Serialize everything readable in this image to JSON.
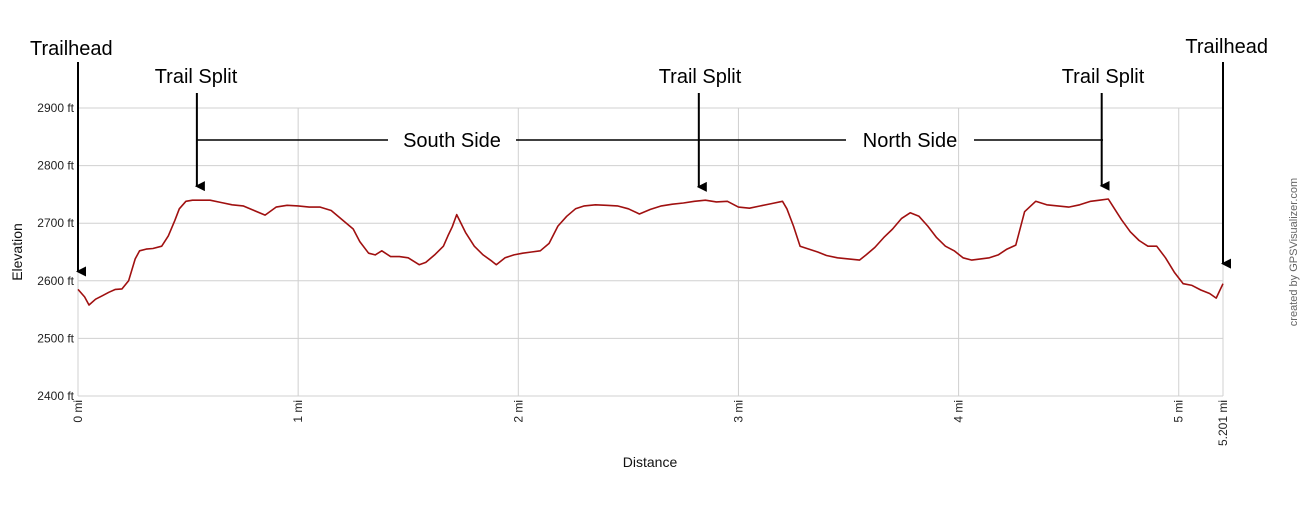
{
  "chart_data": {
    "type": "line",
    "xlabel": "Distance",
    "ylabel": "Elevation",
    "xlim": [
      0,
      5.201
    ],
    "ylim": [
      2400,
      2900
    ],
    "y_ticks": [
      {
        "value": 2400,
        "label": "2400 ft"
      },
      {
        "value": 2500,
        "label": "2500 ft"
      },
      {
        "value": 2600,
        "label": "2600 ft"
      },
      {
        "value": 2700,
        "label": "2700 ft"
      },
      {
        "value": 2800,
        "label": "2800 ft"
      },
      {
        "value": 2900,
        "label": "2900 ft"
      }
    ],
    "x_ticks": [
      {
        "value": 0,
        "label": "0 mi"
      },
      {
        "value": 1,
        "label": "1 mi"
      },
      {
        "value": 2,
        "label": "2 mi"
      },
      {
        "value": 3,
        "label": "3 mi"
      },
      {
        "value": 4,
        "label": "4 mi"
      },
      {
        "value": 5,
        "label": "5 mi"
      },
      {
        "value": 5.201,
        "label": "5.201 mi"
      }
    ],
    "grid": true,
    "line_color": "#a01010",
    "series": [
      {
        "x": [
          0,
          0.03,
          0.05,
          0.08,
          0.11,
          0.14,
          0.17,
          0.2,
          0.23,
          0.26,
          0.28,
          0.31,
          0.34,
          0.38,
          0.41,
          0.44,
          0.46,
          0.49,
          0.52,
          0.55,
          0.6,
          0.65,
          0.7,
          0.75,
          0.8,
          0.85,
          0.9,
          0.95,
          1.0,
          1.05,
          1.1,
          1.15,
          1.2,
          1.25,
          1.28,
          1.32,
          1.35,
          1.38,
          1.42,
          1.46,
          1.5,
          1.55,
          1.58,
          1.62,
          1.66,
          1.68,
          1.7,
          1.72,
          1.76,
          1.8,
          1.84,
          1.88,
          1.9,
          1.94,
          1.98,
          2.02,
          2.06,
          2.1,
          2.14,
          2.18,
          2.22,
          2.26,
          2.3,
          2.35,
          2.4,
          2.45,
          2.5,
          2.55,
          2.6,
          2.65,
          2.7,
          2.75,
          2.8,
          2.85,
          2.9,
          2.95,
          3.0,
          3.05,
          3.1,
          3.15,
          3.2,
          3.22,
          3.25,
          3.28,
          3.32,
          3.36,
          3.4,
          3.45,
          3.5,
          3.55,
          3.58,
          3.62,
          3.66,
          3.7,
          3.74,
          3.78,
          3.82,
          3.86,
          3.9,
          3.94,
          3.98,
          4.02,
          4.06,
          4.1,
          4.14,
          4.18,
          4.22,
          4.26,
          4.3,
          4.35,
          4.4,
          4.45,
          4.5,
          4.55,
          4.6,
          4.64,
          4.68,
          4.7,
          4.74,
          4.78,
          4.82,
          4.86,
          4.9,
          4.94,
          4.98,
          5.02,
          5.06,
          5.1,
          5.14,
          5.17,
          5.201
        ],
        "y": [
          2585,
          2572,
          2558,
          2568,
          2574,
          2580,
          2585,
          2586,
          2600,
          2638,
          2652,
          2655,
          2656,
          2660,
          2678,
          2705,
          2725,
          2738,
          2740,
          2740,
          2740,
          2736,
          2732,
          2730,
          2722,
          2714,
          2728,
          2731,
          2730,
          2728,
          2728,
          2722,
          2706,
          2690,
          2668,
          2648,
          2645,
          2652,
          2642,
          2642,
          2640,
          2628,
          2632,
          2645,
          2660,
          2678,
          2694,
          2715,
          2684,
          2660,
          2645,
          2634,
          2628,
          2640,
          2645,
          2648,
          2650,
          2652,
          2665,
          2695,
          2712,
          2725,
          2730,
          2732,
          2731,
          2730,
          2725,
          2716,
          2724,
          2730,
          2733,
          2735,
          2738,
          2740,
          2737,
          2738,
          2728,
          2726,
          2730,
          2734,
          2738,
          2725,
          2695,
          2660,
          2655,
          2650,
          2644,
          2640,
          2638,
          2636,
          2645,
          2658,
          2675,
          2690,
          2708,
          2718,
          2712,
          2695,
          2675,
          2660,
          2652,
          2640,
          2636,
          2638,
          2640,
          2645,
          2655,
          2662,
          2720,
          2738,
          2732,
          2730,
          2728,
          2732,
          2738,
          2740,
          2742,
          2730,
          2706,
          2685,
          2670,
          2660,
          2660,
          2640,
          2615,
          2595,
          2592,
          2584,
          2578,
          2570,
          2595
        ]
      }
    ],
    "annotations": {
      "trailhead_left": "Trailhead",
      "trailhead_right": "Trailhead",
      "split_1": "Trail Split",
      "split_2": "Trail Split",
      "split_3": "Trail Split",
      "south_side": "South Side",
      "north_side": "North Side"
    },
    "annotation_points": {
      "trailhead_left": 0,
      "split_1": 0.54,
      "split_2": 2.82,
      "split_3": 4.65,
      "trailhead_right": 5.201
    },
    "credit": "created by GPSVisualizer.com"
  }
}
